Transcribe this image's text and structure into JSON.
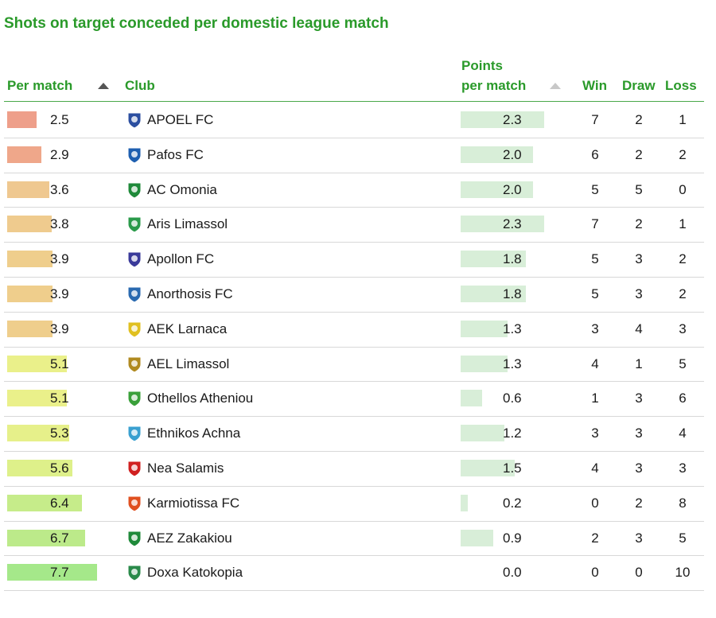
{
  "title": "Shots on target conceded per domestic league match",
  "header": {
    "per_match": "Per match",
    "club": "Club",
    "ppm_line1": "Points",
    "ppm_line2": "per match",
    "win": "Win",
    "draw": "Draw",
    "loss": "Loss"
  },
  "colors": {
    "accent": "#2a9a2a",
    "ppm_bar": "#d8eed8",
    "shot_scale": [
      "#ee9f8a",
      "#efce8c",
      "#eaf08a",
      "#a5e88a"
    ]
  },
  "chart_data": {
    "type": "table",
    "columns": [
      "Per match",
      "Club",
      "Points per match",
      "Win",
      "Draw",
      "Loss"
    ],
    "rows": [
      {
        "per_match": "2.5",
        "club": "APOEL FC",
        "ppm": "2.3",
        "win": "7",
        "draw": "2",
        "loss": "1",
        "shots": 2.5,
        "points": 2.3,
        "color": "#ee9f8a"
      },
      {
        "per_match": "2.9",
        "club": "Pafos FC",
        "ppm": "2.0",
        "win": "6",
        "draw": "2",
        "loss": "2",
        "shots": 2.9,
        "points": 2.0,
        "color": "#efa78a"
      },
      {
        "per_match": "3.6",
        "club": "AC Omonia",
        "ppm": "2.0",
        "win": "5",
        "draw": "5",
        "loss": "0",
        "shots": 3.6,
        "points": 2.0,
        "color": "#efc890"
      },
      {
        "per_match": "3.8",
        "club": "Aris Limassol",
        "ppm": "2.3",
        "win": "7",
        "draw": "2",
        "loss": "1",
        "shots": 3.8,
        "points": 2.3,
        "color": "#efcb8e"
      },
      {
        "per_match": "3.9",
        "club": "Apollon FC",
        "ppm": "1.8",
        "win": "5",
        "draw": "3",
        "loss": "2",
        "shots": 3.9,
        "points": 1.8,
        "color": "#efce8c"
      },
      {
        "per_match": "3.9",
        "club": "Anorthosis FC",
        "ppm": "1.8",
        "win": "5",
        "draw": "3",
        "loss": "2",
        "shots": 3.9,
        "points": 1.8,
        "color": "#efce8c"
      },
      {
        "per_match": "3.9",
        "club": "AEK Larnaca",
        "ppm": "1.3",
        "win": "3",
        "draw": "4",
        "loss": "3",
        "shots": 3.9,
        "points": 1.3,
        "color": "#efce8c"
      },
      {
        "per_match": "5.1",
        "club": "AEL Limassol",
        "ppm": "1.3",
        "win": "4",
        "draw": "1",
        "loss": "5",
        "shots": 5.1,
        "points": 1.3,
        "color": "#eaf08a"
      },
      {
        "per_match": "5.1",
        "club": "Othellos Atheniou",
        "ppm": "0.6",
        "win": "1",
        "draw": "3",
        "loss": "6",
        "shots": 5.1,
        "points": 0.6,
        "color": "#eaf08a"
      },
      {
        "per_match": "5.3",
        "club": "Ethnikos Achna",
        "ppm": "1.2",
        "win": "3",
        "draw": "3",
        "loss": "4",
        "shots": 5.3,
        "points": 1.2,
        "color": "#e6f08a"
      },
      {
        "per_match": "5.6",
        "club": "Nea Salamis",
        "ppm": "1.5",
        "win": "4",
        "draw": "3",
        "loss": "3",
        "shots": 5.6,
        "points": 1.5,
        "color": "#def08a"
      },
      {
        "per_match": "6.4",
        "club": "Karmiotissa FC",
        "ppm": "0.2",
        "win": "0",
        "draw": "2",
        "loss": "8",
        "shots": 6.4,
        "points": 0.2,
        "color": "#c6ec8a"
      },
      {
        "per_match": "6.7",
        "club": "AEZ Zakakiou",
        "ppm": "0.9",
        "win": "2",
        "draw": "3",
        "loss": "5",
        "shots": 6.7,
        "points": 0.9,
        "color": "#bcea8a"
      },
      {
        "per_match": "7.7",
        "club": "Doxa Katokopia",
        "ppm": "0.0",
        "win": "0",
        "draw": "0",
        "loss": "10",
        "shots": 7.7,
        "points": 0.0,
        "color": "#a5e88a"
      }
    ],
    "shots_max": 7.7,
    "points_max": 2.3,
    "crest_colors": [
      "#2c4fa0",
      "#1e5fb0",
      "#1f8a3a",
      "#2a9a4a",
      "#3a3a9a",
      "#2a6ab0",
      "#e0c020",
      "#b08a20",
      "#3aa03a",
      "#3aa0d0",
      "#d02020",
      "#e05020",
      "#1f8a3a",
      "#2a8a4a"
    ]
  }
}
